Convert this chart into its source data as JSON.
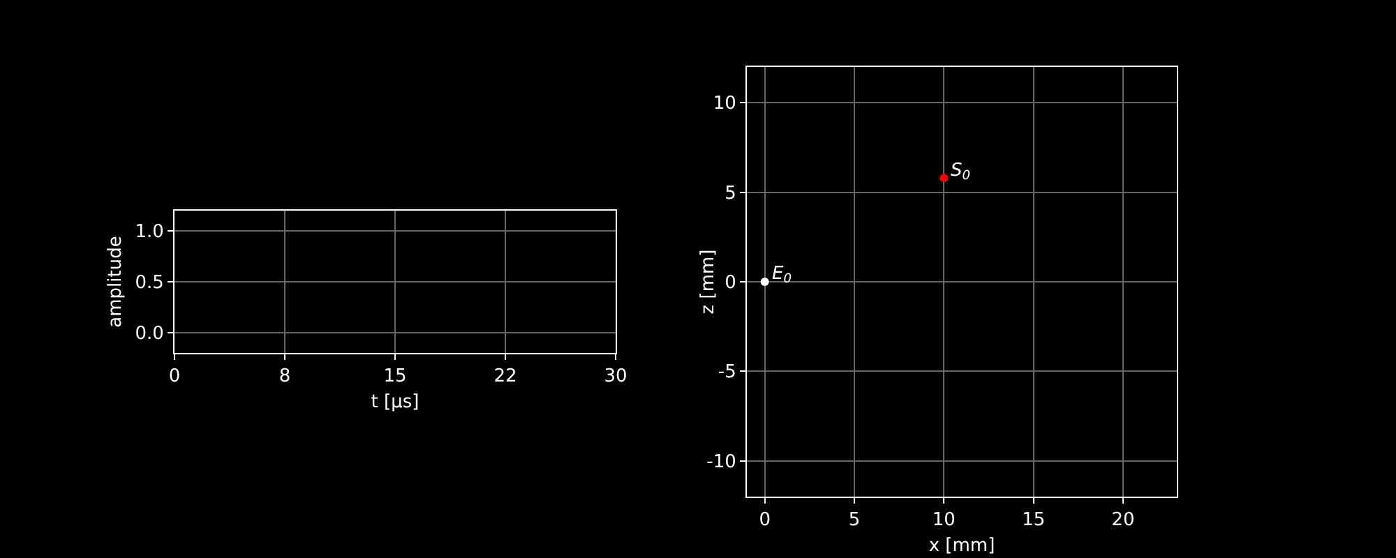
{
  "chart_data": [
    {
      "type": "line",
      "xlabel": "t [μs]",
      "ylabel": "amplitude",
      "xlim": [
        0,
        30
      ],
      "xticks": [
        0,
        {
          "value": 7.5,
          "label": "8"
        },
        15,
        {
          "value": 22.5,
          "label": "22"
        },
        30
      ],
      "ylim": [
        -0.2,
        1.2
      ],
      "yticks": [
        {
          "value": 0,
          "label": "0.0"
        },
        {
          "value": 0.5,
          "label": "0.5"
        },
        {
          "value": 1,
          "label": "1.0"
        }
      ],
      "grid": true
    },
    {
      "type": "scatter",
      "xlabel": "x [mm]",
      "ylabel": "z [mm]",
      "x": [
        0,
        10
      ],
      "values": [
        0,
        5.8
      ],
      "colors": [
        "#ffffff",
        "#ff0000"
      ],
      "marker": "circle",
      "xlim": [
        -1,
        23
      ],
      "xticks": [
        0,
        5,
        10,
        15,
        20
      ],
      "ylim": [
        -12,
        12
      ],
      "yticks": [
        -10,
        -5,
        0,
        5,
        10
      ],
      "grid": true,
      "annotations": [
        {
          "text": "E$_{0}$",
          "x": 0,
          "y": 0
        },
        {
          "text": "S$_{0}$",
          "x": 10,
          "y": 5.8
        }
      ]
    }
  ]
}
